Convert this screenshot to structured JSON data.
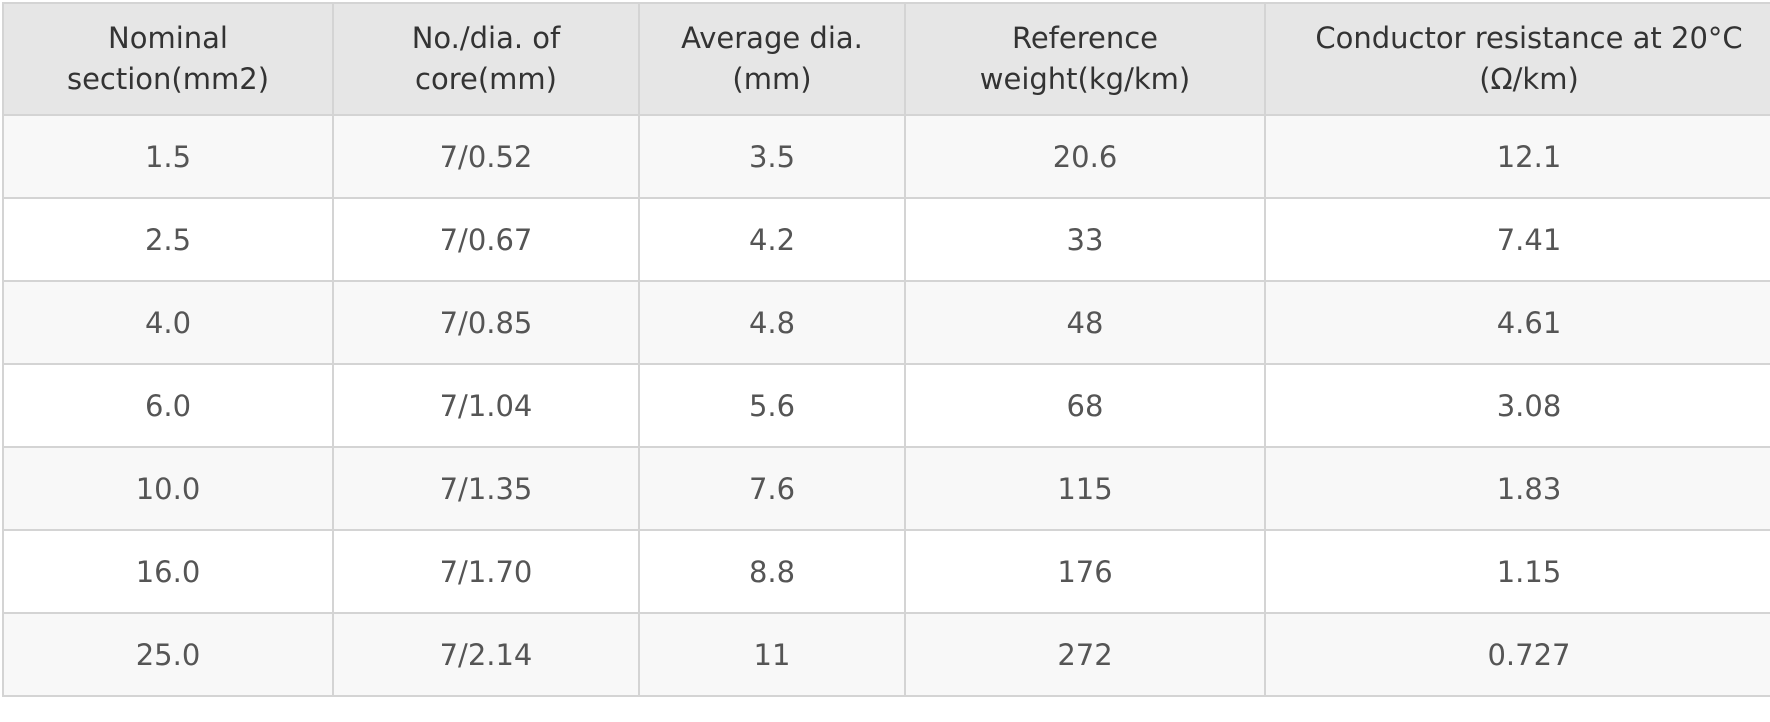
{
  "table": {
    "headers": [
      [
        "Nominal",
        "section(mm2)"
      ],
      [
        "No./dia. of",
        "core(mm)"
      ],
      [
        "Average dia.",
        "(mm)"
      ],
      [
        "Reference",
        "weight(kg/km)"
      ],
      [
        "Conductor resistance at 20°C",
        "(Ω/km)"
      ]
    ],
    "rows": [
      [
        "1.5",
        "7/0.52",
        "3.5",
        "20.6",
        "12.1"
      ],
      [
        "2.5",
        "7/0.67",
        "4.2",
        "33",
        "7.41"
      ],
      [
        "4.0",
        "7/0.85",
        "4.8",
        "48",
        "4.61"
      ],
      [
        "6.0",
        "7/1.04",
        "5.6",
        "68",
        "3.08"
      ],
      [
        "10.0",
        "7/1.35",
        "7.6",
        "115",
        "1.83"
      ],
      [
        "16.0",
        "7/1.70",
        "8.8",
        "176",
        "1.15"
      ],
      [
        "25.0",
        "7/2.14",
        "11",
        "272",
        "0.727"
      ]
    ]
  },
  "colors": {
    "header_bg": "#e6e6e6",
    "row_odd_bg": "#f8f8f8",
    "row_even_bg": "#ffffff",
    "border": "#d4d4d4",
    "header_text": "#333333",
    "cell_text": "#555555"
  }
}
